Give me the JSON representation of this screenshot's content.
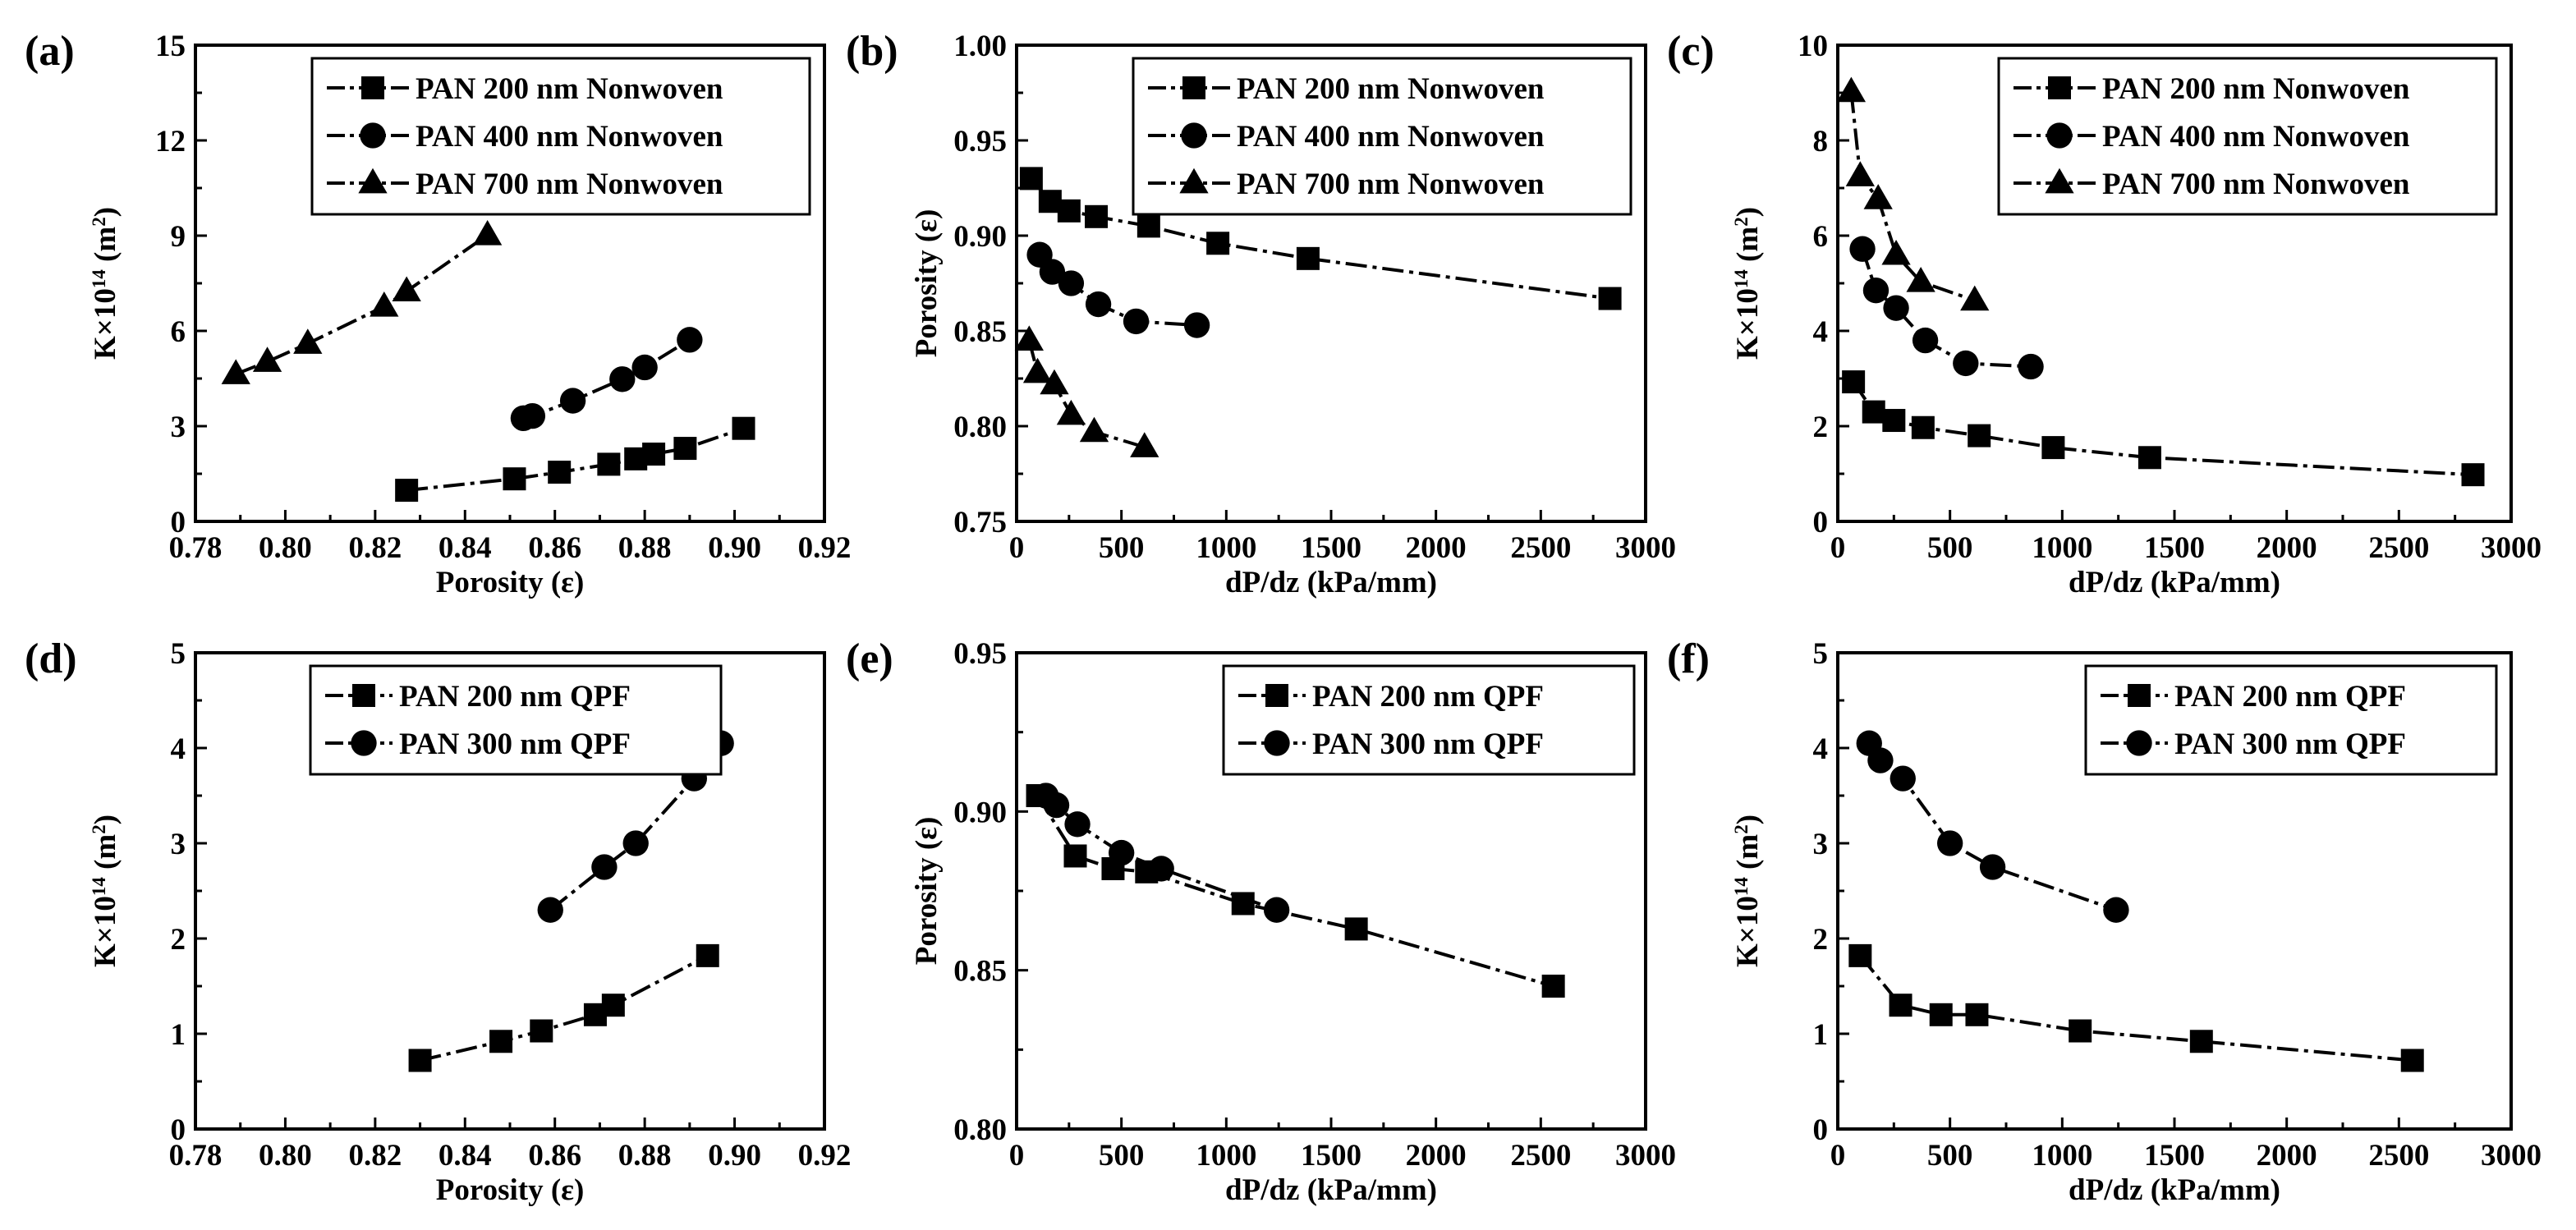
{
  "colors": {
    "foreground": "#000000",
    "background": "#ffffff"
  },
  "chart_data": [
    {
      "panel_label": "(a)",
      "type": "line",
      "xlabel": "Porosity (ε)",
      "ylabel": "K×10^14 (m^2)",
      "xlim": [
        0.78,
        0.92
      ],
      "ylim": [
        0,
        15
      ],
      "xticks": [
        0.78,
        0.8,
        0.82,
        0.84,
        0.86,
        0.88,
        0.9,
        0.92
      ],
      "xtick_labels": [
        "0.78",
        "0.80",
        "0.82",
        "0.84",
        "0.86",
        "0.88",
        "0.90",
        "0.92"
      ],
      "yticks": [
        0,
        3,
        6,
        9,
        12,
        15
      ],
      "ytick_labels": [
        "0",
        "3",
        "6",
        "9",
        "12",
        "15"
      ],
      "legend_position": "top-right",
      "legend_dash": "long",
      "series": [
        {
          "name": "PAN 200 nm Nonwoven",
          "marker": "square",
          "x": [
            0.827,
            0.851,
            0.861,
            0.872,
            0.878,
            0.882,
            0.889,
            0.902
          ],
          "y": [
            0.98,
            1.34,
            1.55,
            1.8,
            1.97,
            2.12,
            2.3,
            2.93
          ]
        },
        {
          "name": "PAN 400 nm Nonwoven",
          "marker": "circle",
          "x": [
            0.853,
            0.855,
            0.864,
            0.875,
            0.88,
            0.89
          ],
          "y": [
            3.25,
            3.32,
            3.8,
            4.48,
            4.85,
            5.72
          ]
        },
        {
          "name": "PAN 700 nm Nonwoven",
          "marker": "triangle",
          "x": [
            0.789,
            0.796,
            0.805,
            0.822,
            0.827,
            0.845
          ],
          "y": [
            4.64,
            5.03,
            5.6,
            6.77,
            7.25,
            9.02
          ]
        }
      ]
    },
    {
      "panel_label": "(b)",
      "type": "line",
      "xlabel": "dP/dz (kPa/mm)",
      "ylabel": "Porosity (ε)",
      "xlim": [
        0,
        3000
      ],
      "ylim": [
        0.75,
        1.0
      ],
      "xticks": [
        0,
        500,
        1000,
        1500,
        2000,
        2500,
        3000
      ],
      "xtick_labels": [
        "0",
        "500",
        "1000",
        "1500",
        "2000",
        "2500",
        "3000"
      ],
      "yticks": [
        0.75,
        0.8,
        0.85,
        0.9,
        0.95,
        1.0
      ],
      "ytick_labels": [
        "0.75",
        "0.80",
        "0.85",
        "0.90",
        "0.95",
        "1.00"
      ],
      "legend_position": "top-right",
      "legend_dash": "long",
      "series": [
        {
          "name": "PAN 200 nm Nonwoven",
          "marker": "square",
          "x": [
            70,
            160,
            250,
            380,
            630,
            960,
            1390,
            2830
          ],
          "y": [
            0.93,
            0.918,
            0.913,
            0.91,
            0.905,
            0.896,
            0.888,
            0.867
          ]
        },
        {
          "name": "PAN 400 nm Nonwoven",
          "marker": "circle",
          "x": [
            110,
            170,
            260,
            390,
            570,
            860
          ],
          "y": [
            0.89,
            0.881,
            0.875,
            0.864,
            0.855,
            0.853
          ]
        },
        {
          "name": "PAN 700 nm Nonwoven",
          "marker": "triangle",
          "x": [
            60,
            100,
            180,
            260,
            370,
            610
          ],
          "y": [
            0.845,
            0.828,
            0.822,
            0.806,
            0.797,
            0.789
          ]
        }
      ]
    },
    {
      "panel_label": "(c)",
      "type": "line",
      "xlabel": "dP/dz (kPa/mm)",
      "ylabel": "K×10^14 (m^2)",
      "xlim": [
        0,
        3000
      ],
      "ylim": [
        0,
        10
      ],
      "xticks": [
        0,
        500,
        1000,
        1500,
        2000,
        2500,
        3000
      ],
      "xtick_labels": [
        "0",
        "500",
        "1000",
        "1500",
        "2000",
        "2500",
        "3000"
      ],
      "yticks": [
        0,
        2,
        4,
        6,
        8,
        10
      ],
      "ytick_labels": [
        "0",
        "2",
        "4",
        "6",
        "8",
        "10"
      ],
      "legend_position": "top-right",
      "legend_dash": "long",
      "series": [
        {
          "name": "PAN 200 nm Nonwoven",
          "marker": "square",
          "x": [
            70,
            160,
            250,
            380,
            630,
            960,
            1390,
            2830
          ],
          "y": [
            2.93,
            2.3,
            2.12,
            1.97,
            1.8,
            1.55,
            1.34,
            0.98
          ]
        },
        {
          "name": "PAN 400 nm Nonwoven",
          "marker": "circle",
          "x": [
            110,
            170,
            260,
            390,
            570,
            860
          ],
          "y": [
            5.72,
            4.85,
            4.48,
            3.8,
            3.32,
            3.25
          ]
        },
        {
          "name": "PAN 700 nm Nonwoven",
          "marker": "triangle",
          "x": [
            60,
            100,
            180,
            260,
            370,
            610
          ],
          "y": [
            9.02,
            7.25,
            6.77,
            5.6,
            5.03,
            4.64
          ]
        }
      ]
    },
    {
      "panel_label": "(d)",
      "type": "line",
      "xlabel": "Porosity (ε)",
      "ylabel": "K×10^14 (m^2)",
      "xlim": [
        0.78,
        0.92
      ],
      "ylim": [
        0,
        5
      ],
      "xticks": [
        0.78,
        0.8,
        0.82,
        0.84,
        0.86,
        0.88,
        0.9,
        0.92
      ],
      "xtick_labels": [
        "0.78",
        "0.80",
        "0.82",
        "0.84",
        "0.86",
        "0.88",
        "0.90",
        "0.92"
      ],
      "yticks": [
        0,
        1,
        2,
        3,
        4,
        5
      ],
      "ytick_labels": [
        "0",
        "1",
        "2",
        "3",
        "4",
        "5"
      ],
      "legend_position": "top-left",
      "legend_dash": "short",
      "series": [
        {
          "name": "PAN 200 nm QPF",
          "marker": "square",
          "x": [
            0.83,
            0.848,
            0.857,
            0.869,
            0.873,
            0.894
          ],
          "y": [
            0.72,
            0.92,
            1.03,
            1.2,
            1.3,
            1.82
          ]
        },
        {
          "name": "PAN 300 nm QPF",
          "marker": "circle",
          "x": [
            0.859,
            0.871,
            0.878,
            0.891,
            0.894,
            0.897
          ],
          "y": [
            2.3,
            2.75,
            3.0,
            3.68,
            3.87,
            4.05
          ]
        }
      ]
    },
    {
      "panel_label": "(e)",
      "type": "line",
      "xlabel": "dP/dz (kPa/mm)",
      "ylabel": "Porosity (ε)",
      "xlim": [
        0,
        3000
      ],
      "ylim": [
        0.8,
        0.95
      ],
      "xticks": [
        0,
        500,
        1000,
        1500,
        2000,
        2500,
        3000
      ],
      "xtick_labels": [
        "0",
        "500",
        "1000",
        "1500",
        "2000",
        "2500",
        "3000"
      ],
      "yticks": [
        0.8,
        0.85,
        0.9,
        0.95
      ],
      "ytick_labels": [
        "0.80",
        "0.85",
        "0.90",
        "0.95"
      ],
      "legend_position": "top-right",
      "legend_dash": "short",
      "series": [
        {
          "name": "PAN 200 nm QPF",
          "marker": "square",
          "x": [
            100,
            280,
            460,
            620,
            1080,
            1620,
            2560
          ],
          "y": [
            0.905,
            0.886,
            0.882,
            0.881,
            0.871,
            0.863,
            0.845
          ]
        },
        {
          "name": "PAN 300 nm QPF",
          "marker": "circle",
          "x": [
            140,
            190,
            290,
            500,
            690,
            1240
          ],
          "y": [
            0.905,
            0.902,
            0.896,
            0.887,
            0.882,
            0.869
          ]
        }
      ]
    },
    {
      "panel_label": "(f)",
      "type": "line",
      "xlabel": "dP/dz (kPa/mm)",
      "ylabel": "K×10^14 (m^2)",
      "xlim": [
        0,
        3000
      ],
      "ylim": [
        0,
        5
      ],
      "xticks": [
        0,
        500,
        1000,
        1500,
        2000,
        2500,
        3000
      ],
      "xtick_labels": [
        "0",
        "500",
        "1000",
        "1500",
        "2000",
        "2500",
        "3000"
      ],
      "yticks": [
        0,
        1,
        2,
        3,
        4,
        5
      ],
      "ytick_labels": [
        "0",
        "1",
        "2",
        "3",
        "4",
        "5"
      ],
      "legend_position": "top-right",
      "legend_dash": "short",
      "series": [
        {
          "name": "PAN 200 nm QPF",
          "marker": "square",
          "x": [
            100,
            280,
            460,
            620,
            1080,
            1620,
            2560
          ],
          "y": [
            1.82,
            1.3,
            1.2,
            1.2,
            1.03,
            0.92,
            0.72
          ]
        },
        {
          "name": "PAN 300 nm QPF",
          "marker": "circle",
          "x": [
            140,
            190,
            290,
            500,
            690,
            1240
          ],
          "y": [
            4.05,
            3.87,
            3.68,
            3.0,
            2.75,
            2.3
          ]
        }
      ]
    }
  ]
}
